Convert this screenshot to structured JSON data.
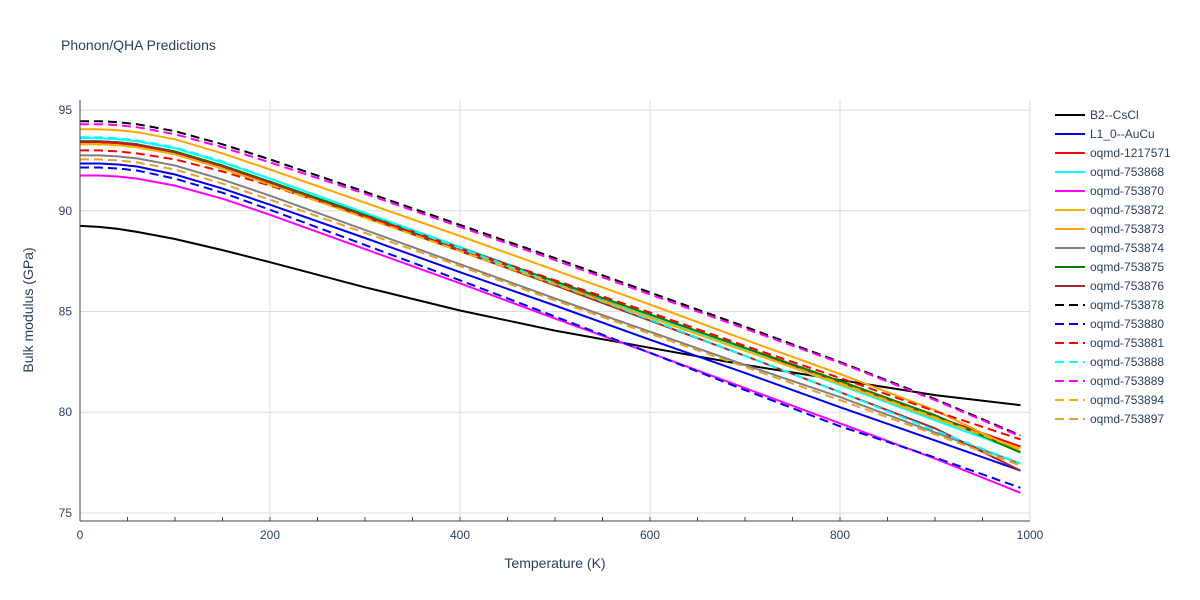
{
  "chart_data": {
    "type": "line",
    "title": "Phonon/QHA Predictions",
    "xlabel": "Temperature (K)",
    "ylabel": "Bulk modulus (GPa)",
    "xlim": [
      0,
      1000
    ],
    "ylim": [
      74.6,
      95.5
    ],
    "xticks": [
      0,
      200,
      400,
      600,
      800,
      1000
    ],
    "yticks": [
      75,
      80,
      85,
      90,
      95
    ],
    "grid": true,
    "legend_position": "right",
    "x": [
      0,
      20,
      40,
      60,
      100,
      150,
      200,
      300,
      400,
      500,
      600,
      700,
      800,
      900,
      990
    ],
    "series": [
      {
        "name": "B2--CsCl",
        "color": "#000000",
        "dash": "solid",
        "values": [
          89.25,
          89.2,
          89.1,
          88.95,
          88.6,
          88.05,
          87.45,
          86.2,
          85.05,
          84.05,
          83.2,
          82.35,
          81.6,
          80.85,
          80.35
        ]
      },
      {
        "name": "L1_0--AuCu",
        "color": "#0000ee",
        "dash": "solid",
        "values": [
          92.35,
          92.35,
          92.3,
          92.2,
          91.8,
          91.1,
          90.3,
          88.65,
          86.95,
          85.3,
          83.6,
          81.95,
          80.25,
          78.6,
          77.1
        ]
      },
      {
        "name": "oqmd-1217571",
        "color": "#ff0000",
        "dash": "solid",
        "values": [
          93.4,
          93.4,
          93.35,
          93.25,
          92.9,
          92.2,
          91.4,
          89.75,
          88.1,
          86.45,
          84.8,
          83.15,
          81.45,
          79.8,
          78.3
        ]
      },
      {
        "name": "oqmd-753868",
        "color": "#00ffff",
        "dash": "solid",
        "values": [
          93.6,
          93.6,
          93.55,
          93.45,
          93.1,
          92.4,
          91.6,
          89.9,
          88.2,
          86.5,
          84.8,
          83.1,
          81.35,
          79.6,
          78.05
        ]
      },
      {
        "name": "oqmd-753870",
        "color": "#ff00ff",
        "dash": "solid",
        "values": [
          91.75,
          91.75,
          91.7,
          91.6,
          91.25,
          90.6,
          89.8,
          88.1,
          86.4,
          84.65,
          82.95,
          81.2,
          79.45,
          77.7,
          76.0
        ]
      },
      {
        "name": "oqmd-753872",
        "color": "#f0b400",
        "dash": "solid",
        "values": [
          93.3,
          93.3,
          93.25,
          93.15,
          92.8,
          92.1,
          91.3,
          89.65,
          88.0,
          86.35,
          84.7,
          83.05,
          81.4,
          79.7,
          78.2
        ]
      },
      {
        "name": "oqmd-753873",
        "color": "#ffa500",
        "dash": "solid",
        "values": [
          94.05,
          94.05,
          94.0,
          93.9,
          93.55,
          92.85,
          92.05,
          90.4,
          88.75,
          87.05,
          85.35,
          83.6,
          81.9,
          80.1,
          78.05
        ]
      },
      {
        "name": "oqmd-753874",
        "color": "#808080",
        "dash": "solid",
        "values": [
          92.75,
          92.75,
          92.7,
          92.6,
          92.25,
          91.55,
          90.75,
          89.05,
          87.35,
          85.65,
          84.0,
          82.35,
          80.75,
          79.0,
          77.45
        ]
      },
      {
        "name": "oqmd-753875",
        "color": "#008000",
        "dash": "solid",
        "values": [
          93.45,
          93.45,
          93.4,
          93.3,
          92.95,
          92.25,
          91.45,
          89.8,
          88.15,
          86.5,
          84.85,
          83.2,
          81.55,
          79.85,
          78.0
        ]
      },
      {
        "name": "oqmd-753876",
        "color": "#a52a2a",
        "dash": "solid",
        "values": [
          93.45,
          93.45,
          93.4,
          93.3,
          92.9,
          92.2,
          91.4,
          89.7,
          88.0,
          86.3,
          84.55,
          82.8,
          81.0,
          79.2,
          77.1
        ]
      },
      {
        "name": "oqmd-753878",
        "color": "#000000",
        "dash": "dash",
        "values": [
          94.45,
          94.45,
          94.4,
          94.3,
          93.95,
          93.3,
          92.55,
          90.95,
          89.3,
          87.65,
          85.95,
          84.25,
          82.5,
          80.65,
          78.85
        ]
      },
      {
        "name": "oqmd-753880",
        "color": "#0000ee",
        "dash": "dash",
        "values": [
          92.15,
          92.15,
          92.1,
          92.0,
          91.6,
          90.9,
          90.05,
          88.3,
          86.55,
          84.75,
          82.95,
          81.1,
          79.3,
          77.75,
          76.25
        ]
      },
      {
        "name": "oqmd-753881",
        "color": "#ff0000",
        "dash": "dash",
        "values": [
          93.0,
          93.0,
          92.95,
          92.85,
          92.55,
          91.95,
          91.25,
          89.75,
          88.15,
          86.55,
          84.95,
          83.3,
          81.7,
          80.05,
          78.65
        ]
      },
      {
        "name": "oqmd-753888",
        "color": "#00ffff",
        "dash": "dash",
        "values": [
          93.65,
          93.65,
          93.6,
          93.5,
          93.15,
          92.45,
          91.6,
          89.9,
          88.15,
          86.4,
          84.6,
          82.8,
          81.0,
          79.1,
          77.45
        ]
      },
      {
        "name": "oqmd-753889",
        "color": "#ff00ff",
        "dash": "dash",
        "values": [
          94.3,
          94.3,
          94.25,
          94.15,
          93.8,
          93.15,
          92.4,
          90.85,
          89.2,
          87.55,
          85.85,
          84.15,
          82.45,
          80.6,
          78.8
        ]
      },
      {
        "name": "oqmd-753894",
        "color": "#f0b400",
        "dash": "dash",
        "values": [
          93.3,
          93.3,
          93.25,
          93.15,
          92.8,
          92.1,
          91.3,
          89.65,
          88.0,
          86.35,
          84.7,
          83.05,
          81.45,
          79.75,
          78.15
        ]
      },
      {
        "name": "oqmd-753897",
        "color": "#e8a030",
        "dash": "dash",
        "values": [
          92.55,
          92.55,
          92.5,
          92.4,
          92.05,
          91.35,
          90.55,
          88.9,
          87.25,
          85.55,
          83.9,
          82.25,
          80.6,
          78.9,
          77.35
        ]
      }
    ]
  }
}
